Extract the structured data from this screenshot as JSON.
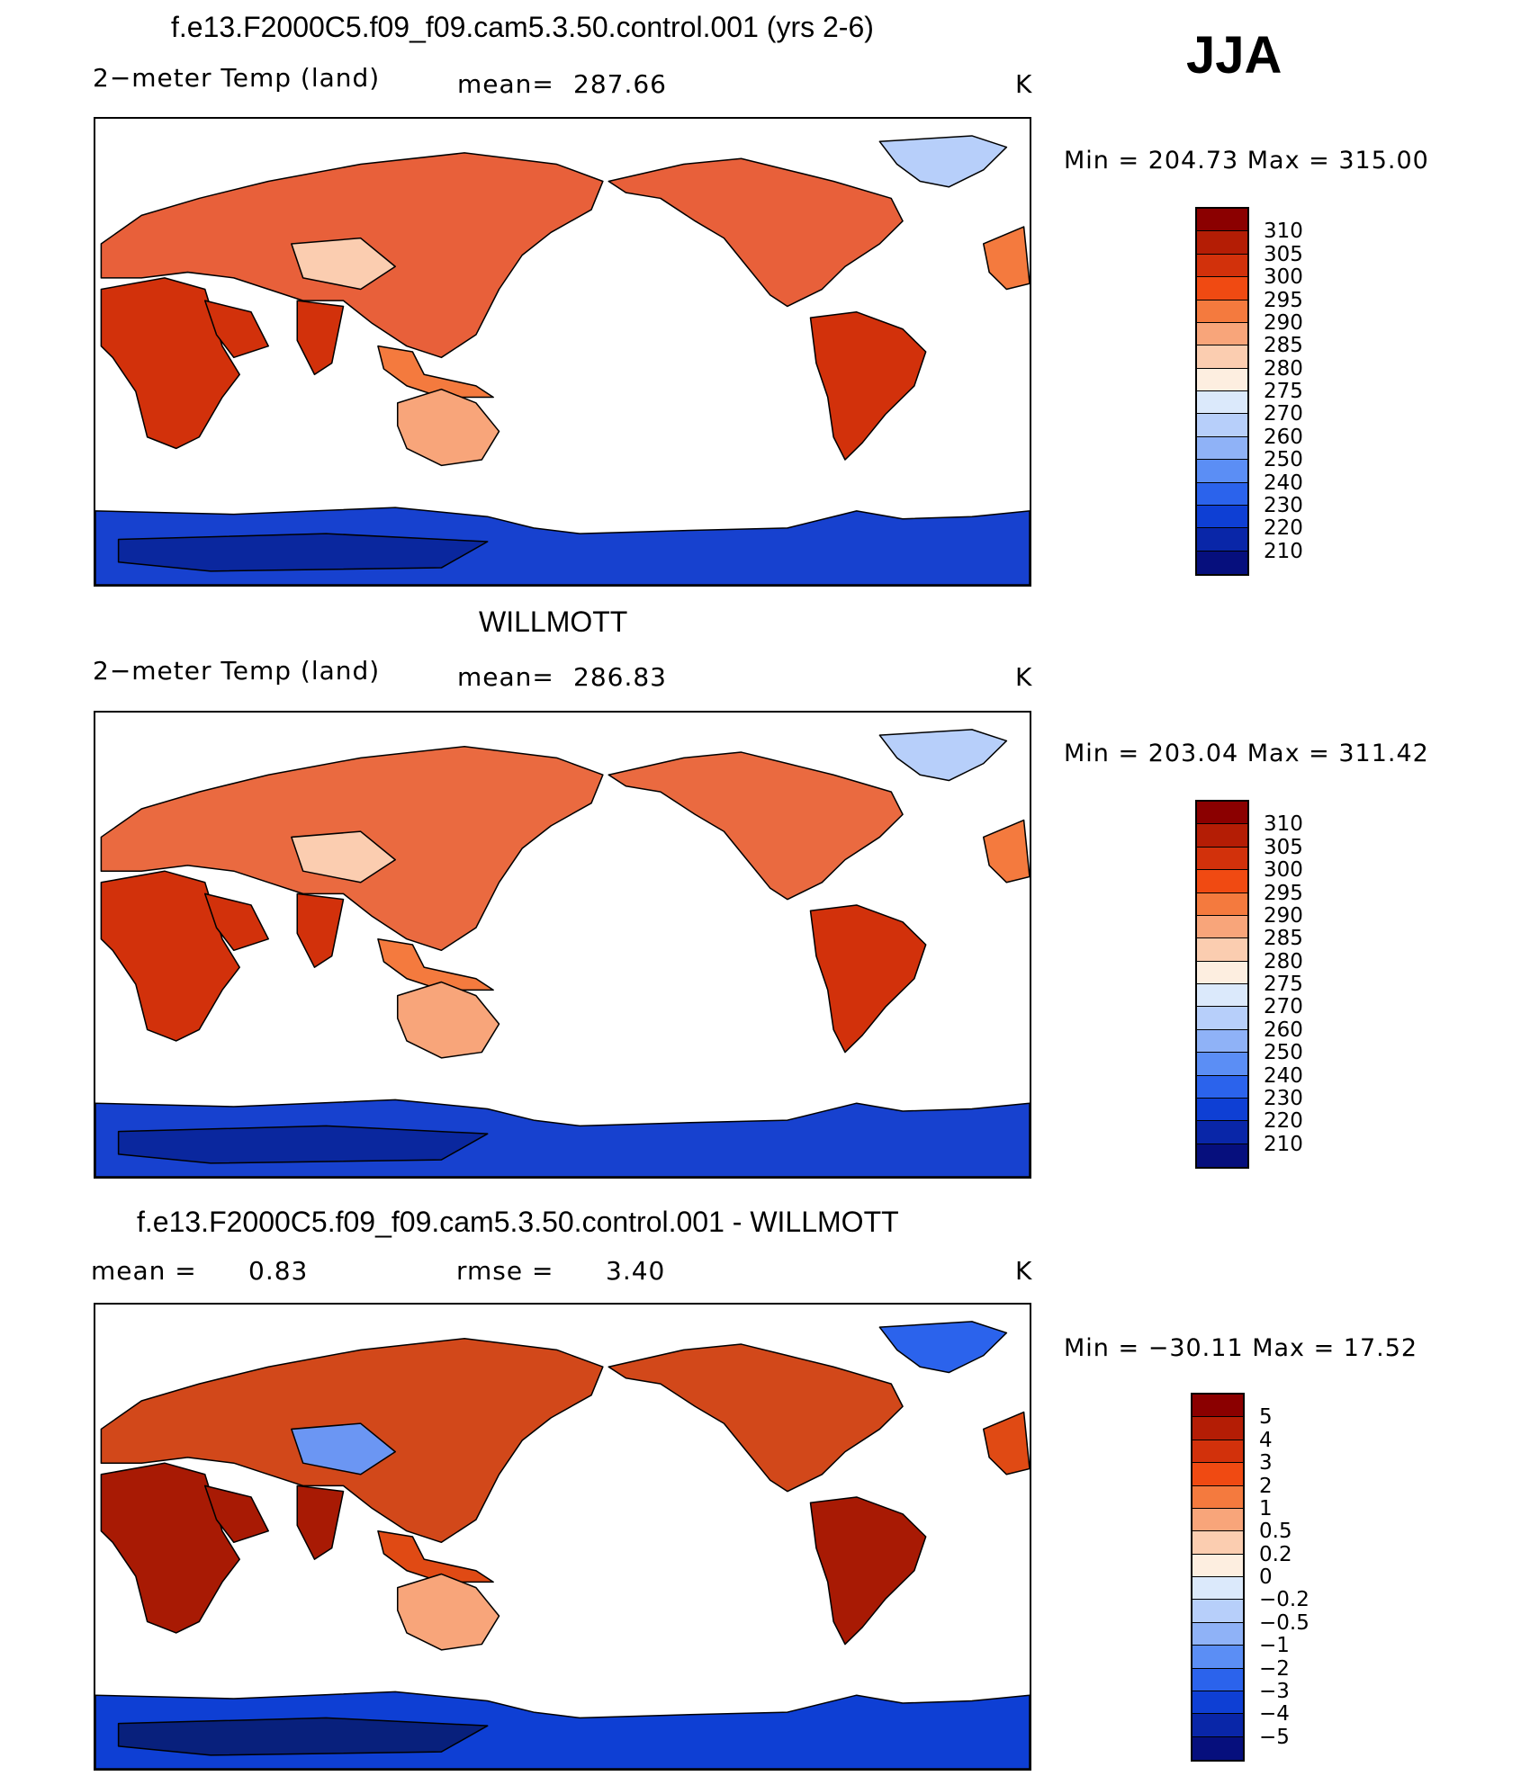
{
  "season": "JJA",
  "units": "K",
  "panels": [
    {
      "title": "f.e13.F2000C5.f09_f09.cam5.3.50.control.001 (yrs 2-6)",
      "left_label": "2−meter Temp (land)",
      "stat_label": "mean=",
      "stat_value": "287.66",
      "minmax": "Min = 204.73 Max = 315.00",
      "colorbar": {
        "labels": [
          "310",
          "305",
          "300",
          "295",
          "290",
          "285",
          "280",
          "275",
          "270",
          "260",
          "250",
          "240",
          "230",
          "220",
          "210"
        ],
        "colors": [
          "#8b0000",
          "#b41d05",
          "#d2310b",
          "#f04a12",
          "#f47a3e",
          "#f8a57a",
          "#fbcdb0",
          "#fdeee0",
          "#dbe9fb",
          "#b7cffa",
          "#8fb2f7",
          "#5b8ef5",
          "#2b63ec",
          "#0e3fd4",
          "#0926a8",
          "#060f7d"
        ]
      },
      "palette": {
        "land": "#e8603a",
        "hot": "#d2310b",
        "warm": "#f47a3e",
        "mild": "#f8a57a",
        "cool": "#fbcdb0",
        "cold": "#b7cffa",
        "ice": "#1741cf",
        "ice_dark": "#0a279e"
      }
    },
    {
      "title": "WILLMOTT",
      "left_label": "2−meter Temp (land)",
      "stat_label": "mean=",
      "stat_value": "286.83",
      "minmax": "Min = 203.04 Max = 311.42",
      "colorbar": {
        "labels": [
          "310",
          "305",
          "300",
          "295",
          "290",
          "285",
          "280",
          "275",
          "270",
          "260",
          "250",
          "240",
          "230",
          "220",
          "210"
        ],
        "colors": [
          "#8b0000",
          "#b41d05",
          "#d2310b",
          "#f04a12",
          "#f47a3e",
          "#f8a57a",
          "#fbcdb0",
          "#fdeee0",
          "#dbe9fb",
          "#b7cffa",
          "#8fb2f7",
          "#5b8ef5",
          "#2b63ec",
          "#0e3fd4",
          "#0926a8",
          "#060f7d"
        ]
      },
      "palette": {
        "land": "#ea6a40",
        "hot": "#d2310b",
        "warm": "#f47a3e",
        "mild": "#f8a57a",
        "cool": "#fbcdb0",
        "cold": "#b7cffa",
        "ice": "#1741cf",
        "ice_dark": "#0a279e"
      }
    },
    {
      "title": "f.e13.F2000C5.f09_f09.cam5.3.50.control.001 - WILLMOTT",
      "left_label": "mean =",
      "left_value": "0.83",
      "stat_label": "rmse =",
      "stat_value": "3.40",
      "minmax": "Min = −30.11 Max =  17.52",
      "colorbar": {
        "labels": [
          "5",
          "4",
          "3",
          "2",
          "1",
          "0.5",
          "0.2",
          "0",
          "−0.2",
          "−0.5",
          "−1",
          "−2",
          "−3",
          "−4",
          "−5"
        ],
        "colors": [
          "#8b0000",
          "#b41d05",
          "#d2310b",
          "#f04a12",
          "#f47a3e",
          "#f8a57a",
          "#fbcdb0",
          "#fdeee0",
          "#dbe9fb",
          "#b7cffa",
          "#8fb2f7",
          "#5b8ef5",
          "#2b63ec",
          "#0e3fd4",
          "#0926a8",
          "#060f7d"
        ]
      },
      "palette": {
        "land": "#d2481a",
        "hot": "#a81a04",
        "warm": "#e04a14",
        "mild": "#f8a57a",
        "cool": "#6b96f3",
        "cold": "#2b63ec",
        "ice": "#0e3fd4",
        "ice_dark": "#08207c"
      }
    }
  ]
}
